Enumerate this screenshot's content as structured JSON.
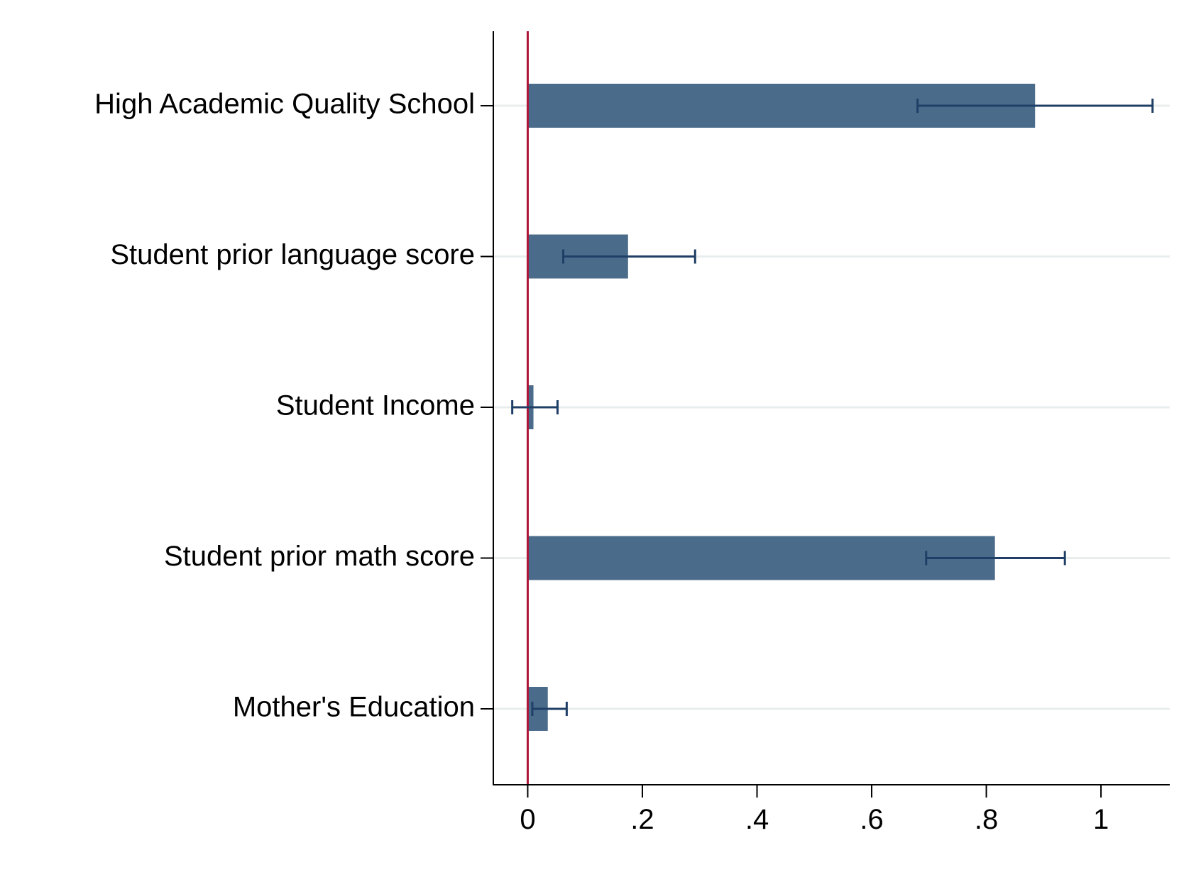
{
  "colors": {
    "background": "#ffffff",
    "bar": "#4b6b8a",
    "error_bar": "#1f3f66",
    "reference_line": "#b0153a",
    "gridline": "#e8eeee",
    "axis": "#000000"
  },
  "chart_data": {
    "type": "bar",
    "orientation": "horizontal",
    "title": "",
    "xlabel": "",
    "ylabel": "",
    "categories": [
      "High Academic Quality School",
      "Student prior language score",
      "Student Income",
      "Student prior math score",
      "Mother's Education"
    ],
    "values": [
      0.885,
      0.175,
      0.01,
      0.815,
      0.035
    ],
    "ci_lower": [
      0.68,
      0.062,
      -0.027,
      0.695,
      0.008
    ],
    "ci_upper": [
      1.09,
      0.292,
      0.052,
      0.937,
      0.068
    ],
    "xlim": [
      -0.06,
      1.12
    ],
    "xticks": [
      0,
      0.2,
      0.4,
      0.6,
      0.8,
      1
    ],
    "xtick_labels": [
      "0",
      ".2",
      ".4",
      ".6",
      ".8",
      "1"
    ],
    "reference_line_x": 0,
    "grid": true,
    "legend": "none"
  }
}
